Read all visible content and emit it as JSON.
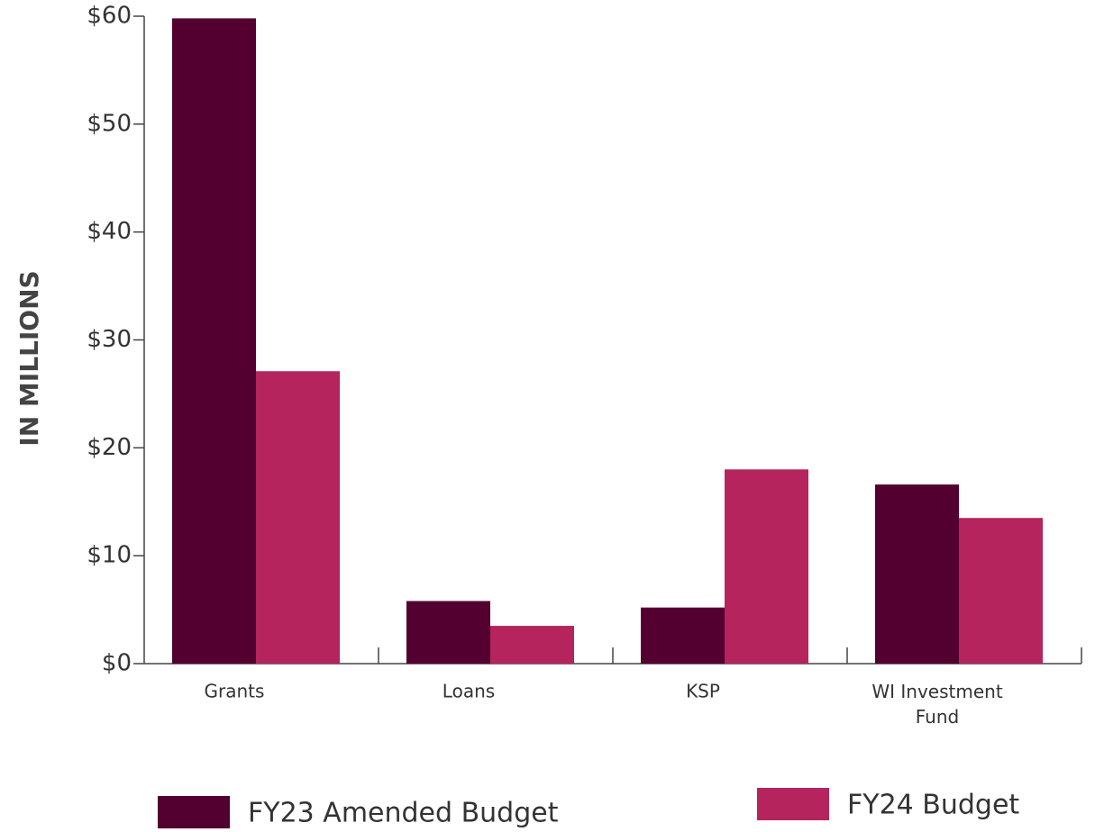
{
  "chart_data": {
    "type": "bar",
    "y_axis_label": "IN MILLIONS",
    "categories": [
      "Grants",
      "Loans",
      "KSP",
      "WI Investment Fund"
    ],
    "series": [
      {
        "name": "FY23 Amended Budget",
        "color": "#530031",
        "values": [
          59.8,
          5.8,
          5.2,
          16.6
        ]
      },
      {
        "name": "FY24 Budget",
        "color": "#b5245c",
        "values": [
          27.1,
          3.5,
          18.0,
          13.5
        ]
      }
    ],
    "ylim": [
      0,
      60
    ],
    "yticks": [
      {
        "value": 0,
        "label": "$0"
      },
      {
        "value": 10,
        "label": "$10"
      },
      {
        "value": 20,
        "label": "$20"
      },
      {
        "value": 30,
        "label": "$30"
      },
      {
        "value": 40,
        "label": "$40"
      },
      {
        "value": 50,
        "label": "$50"
      },
      {
        "value": 60,
        "label": "$60"
      }
    ],
    "grid": false
  }
}
